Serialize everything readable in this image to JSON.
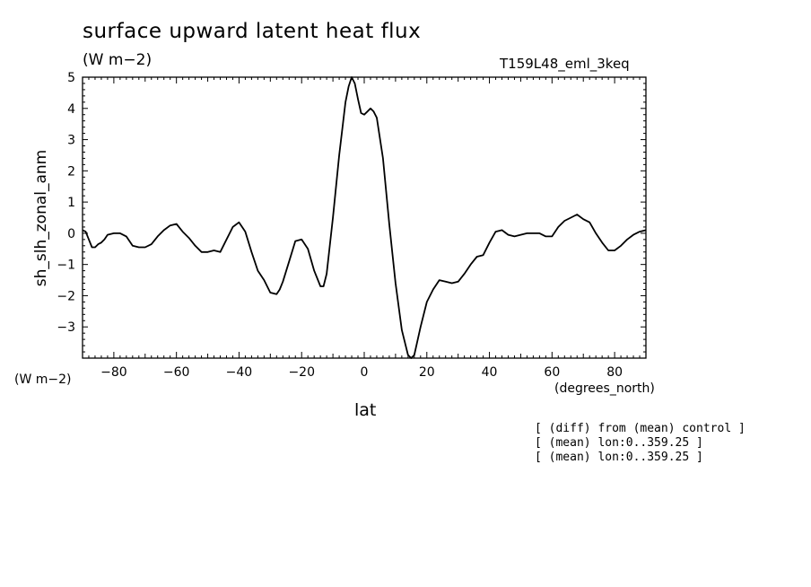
{
  "chart_data": {
    "type": "line",
    "title": "surface upward latent heat flux",
    "units": "(W m−2)",
    "run_id": "T159L48_eml_3keq",
    "ylabel": "sh_slh_zonal_anm",
    "yunits": "(W m−2)",
    "xlabel": "lat",
    "xunits": "(degrees_north)",
    "xlim": [
      -90,
      90
    ],
    "ylim": [
      -4,
      5
    ],
    "xticks": [
      -80,
      -60,
      -40,
      -20,
      0,
      20,
      40,
      60,
      80
    ],
    "xtick_labels": [
      "−80",
      "−60",
      "−40",
      "−20",
      "0",
      "20",
      "40",
      "60",
      "80"
    ],
    "yticks": [
      -3,
      -2,
      -1,
      0,
      1,
      2,
      3,
      4,
      5
    ],
    "ytick_labels": [
      "−3",
      "−2",
      "−1",
      "0",
      "1",
      "2",
      "3",
      "4",
      "5"
    ],
    "grid": false,
    "series": [
      {
        "x": [
          -90,
          -89,
          -88,
          -87,
          -86,
          -85,
          -84,
          -83,
          -82,
          -80,
          -78,
          -76,
          -74,
          -72,
          -70,
          -68,
          -66,
          -64,
          -62,
          -60,
          -58,
          -56,
          -54,
          -52,
          -50,
          -48,
          -46,
          -44,
          -42,
          -40,
          -38,
          -36,
          -34,
          -32,
          -30,
          -28,
          -27,
          -26,
          -24,
          -22,
          -20,
          -18,
          -16,
          -14,
          -13,
          -12,
          -10,
          -8,
          -6,
          -5,
          -4,
          -3,
          -2,
          -1,
          0,
          1,
          2,
          3,
          4,
          6,
          8,
          10,
          12,
          14,
          15,
          16,
          18,
          20,
          22,
          24,
          26,
          28,
          30,
          32,
          34,
          36,
          38,
          40,
          42,
          44,
          46,
          48,
          50,
          52,
          54,
          56,
          58,
          60,
          62,
          64,
          66,
          68,
          70,
          72,
          74,
          76,
          78,
          80,
          82,
          84,
          86,
          88,
          90
        ],
        "y": [
          0.1,
          0.05,
          -0.2,
          -0.45,
          -0.45,
          -0.35,
          -0.3,
          -0.2,
          -0.05,
          0.0,
          0.0,
          -0.1,
          -0.4,
          -0.45,
          -0.45,
          -0.35,
          -0.1,
          0.1,
          0.25,
          0.3,
          0.05,
          -0.15,
          -0.4,
          -0.6,
          -0.6,
          -0.55,
          -0.6,
          -0.2,
          0.2,
          0.35,
          0.05,
          -0.6,
          -1.2,
          -1.5,
          -1.9,
          -1.95,
          -1.8,
          -1.55,
          -0.9,
          -0.25,
          -0.2,
          -0.5,
          -1.2,
          -1.7,
          -1.7,
          -1.3,
          0.5,
          2.5,
          4.2,
          4.7,
          5.0,
          4.8,
          4.3,
          3.85,
          3.8,
          3.9,
          4.0,
          3.9,
          3.7,
          2.4,
          0.3,
          -1.6,
          -3.1,
          -3.9,
          -4.0,
          -3.9,
          -3.0,
          -2.2,
          -1.8,
          -1.5,
          -1.55,
          -1.6,
          -1.55,
          -1.3,
          -1.0,
          -0.75,
          -0.7,
          -0.3,
          0.05,
          0.1,
          -0.05,
          -0.1,
          -0.05,
          0.0,
          0.0,
          0.0,
          -0.1,
          -0.1,
          0.2,
          0.4,
          0.5,
          0.6,
          0.45,
          0.35,
          0.0,
          -0.3,
          -0.55,
          -0.55,
          -0.4,
          -0.2,
          -0.05,
          0.05,
          0.1
        ]
      }
    ]
  },
  "notes": [
    "[ (diff) from (mean) control ]",
    "[ (mean) lon:0..359.25 ]",
    "[ (mean) lon:0..359.25 ]"
  ]
}
